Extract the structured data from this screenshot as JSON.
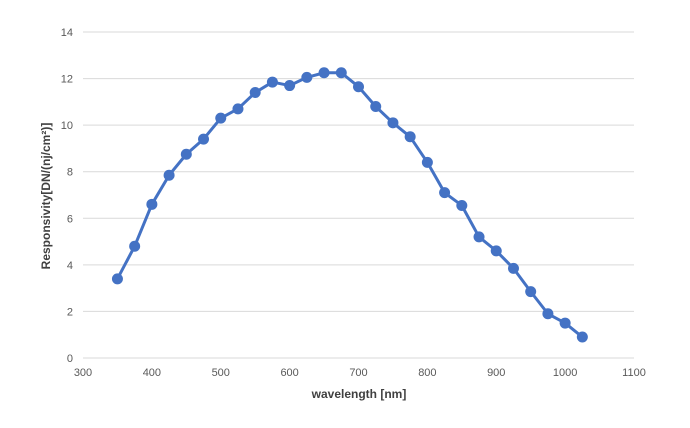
{
  "chart_data": {
    "type": "line",
    "title": "",
    "xlabel": "wavelength [nm]",
    "ylabel": "Responsivity[DN/(nj/cm²)]",
    "xlim": [
      300,
      1100
    ],
    "ylim": [
      0,
      14
    ],
    "xticks": [
      300,
      400,
      500,
      600,
      700,
      800,
      900,
      1000,
      1100
    ],
    "yticks": [
      0,
      2,
      4,
      6,
      8,
      10,
      12,
      14
    ],
    "grid": "horizontal",
    "legend": "none",
    "series": [
      {
        "color": "#4472C4",
        "marker": "circle",
        "x": [
          350,
          375,
          400,
          425,
          450,
          475,
          500,
          525,
          550,
          575,
          600,
          625,
          650,
          675,
          700,
          725,
          750,
          775,
          800,
          825,
          850,
          875,
          900,
          925,
          950,
          975,
          1000,
          1025
        ],
        "y": [
          3.4,
          4.8,
          6.6,
          7.85,
          8.75,
          9.4,
          10.3,
          10.7,
          11.4,
          11.85,
          11.7,
          12.05,
          12.25,
          12.25,
          11.65,
          10.8,
          10.1,
          9.5,
          8.4,
          7.1,
          6.55,
          5.2,
          4.6,
          3.85,
          2.85,
          1.9,
          1.5,
          0.9
        ]
      }
    ]
  },
  "colors": {
    "gridline": "#D9D9D9",
    "tick_text": "#595959",
    "axis_title": "#404040",
    "series": "#4472C4"
  }
}
